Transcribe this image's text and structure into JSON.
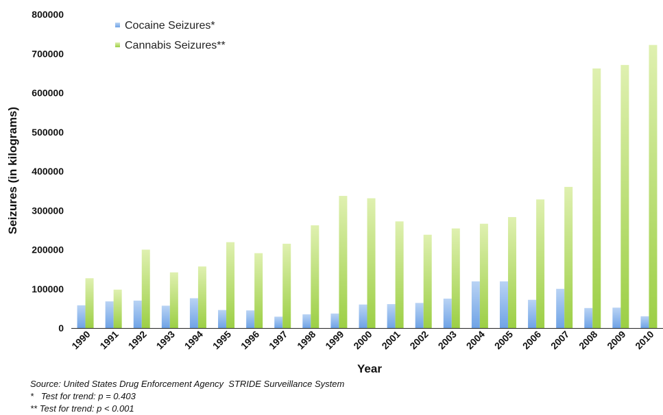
{
  "chart_data": {
    "type": "bar",
    "title": "",
    "xlabel": "Year",
    "ylabel": "Seizures (in kilograms)",
    "ylim": [
      0,
      800000
    ],
    "yticks": [
      0,
      100000,
      200000,
      300000,
      400000,
      500000,
      600000,
      700000,
      800000
    ],
    "grid": false,
    "legend_position": "top-left",
    "categories": [
      "1990",
      "1991",
      "1992",
      "1993",
      "1994",
      "1995",
      "1996",
      "1997",
      "1998",
      "1999",
      "2000",
      "2001",
      "2002",
      "2003",
      "2004",
      "2005",
      "2006",
      "2007",
      "2008",
      "2009",
      "2010"
    ],
    "series": [
      {
        "name": "Cocaine Seizures*",
        "color": "#8fb9ec",
        "values": [
          58000,
          68000,
          70000,
          57000,
          76000,
          46000,
          45000,
          29000,
          35000,
          37000,
          60000,
          61000,
          64000,
          75000,
          119000,
          119000,
          72000,
          100000,
          51000,
          52000,
          30000
        ]
      },
      {
        "name": "Cannabis Seizures**",
        "color": "#b5dd66",
        "values": [
          127000,
          98000,
          200000,
          142000,
          157000,
          219000,
          191000,
          215000,
          262000,
          337000,
          331000,
          272000,
          238000,
          254000,
          266000,
          283000,
          328000,
          360000,
          662000,
          671000,
          722000
        ]
      }
    ]
  },
  "notes": {
    "source": "Source: United States Drug Enforcement Agency  STRIDE Surveillance System",
    "note1": "*   Test for trend: p = 0.403",
    "note2": "** Test for trend: p < 0.001"
  }
}
